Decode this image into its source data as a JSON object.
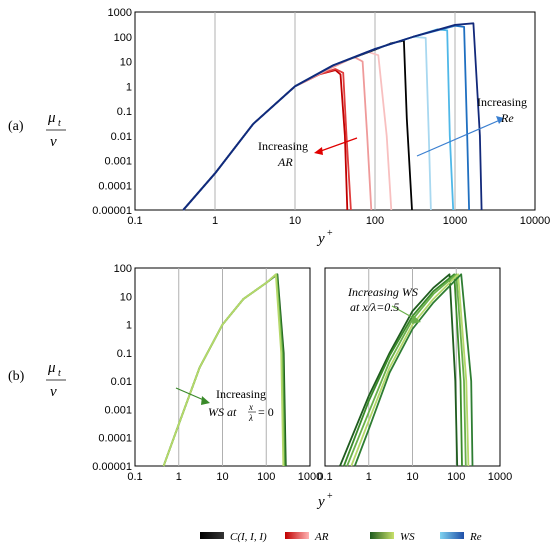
{
  "panel_labels": {
    "a": "(a)",
    "b": "(b)"
  },
  "ylabel": {
    "num": "μ",
    "num_sub": "t",
    "den": "ν"
  },
  "xlabel": {
    "main": "y",
    "sup": "+"
  },
  "annotations": {
    "a_ar": [
      "Increasing",
      "AR"
    ],
    "a_re": [
      "Increasing",
      "Re"
    ],
    "b_left": [
      "Increasing",
      "WS at ",
      "x",
      "λ",
      " = 0"
    ],
    "b_right": [
      "Increasing WS",
      "at x/λ=0.5"
    ]
  },
  "legend": [
    {
      "label": "C(I, I, I)",
      "colors": [
        "#000000",
        "#333333"
      ]
    },
    {
      "label": "AR",
      "colors": [
        "#c00000",
        "#ffb3b3"
      ]
    },
    {
      "label": "WS",
      "colors": [
        "#1f5c1f",
        "#c8e06a"
      ]
    },
    {
      "label": "Re",
      "colors": [
        "#7fd3f0",
        "#1f4fa8"
      ]
    }
  ],
  "chart_data": [
    {
      "type": "line",
      "panel": "(a)",
      "xscale": "log",
      "yscale": "log",
      "xlim": [
        0.1,
        10000
      ],
      "ylim": [
        1e-05,
        1000
      ],
      "xticks": [
        "0.1",
        "1",
        "10",
        "100",
        "1000",
        "10000"
      ],
      "yticks": [
        "0.00001",
        "0.0001",
        "0.001",
        "0.01",
        "0.1",
        "1",
        "10",
        "100",
        "1000"
      ],
      "grid": "vertical",
      "series": [
        {
          "color": "#c00000",
          "x": [
            0.4,
            1,
            3,
            10,
            20,
            32,
            37,
            42,
            45
          ],
          "y": [
            1e-05,
            0.0003,
            0.03,
            1,
            3,
            4.5,
            3.0,
            0.01,
            1e-05
          ]
        },
        {
          "color": "#e03c3c",
          "x": [
            0.4,
            1,
            3,
            10,
            20,
            32,
            40,
            44,
            50
          ],
          "y": [
            1e-05,
            0.0003,
            0.03,
            1,
            3,
            5,
            3.5,
            0.01,
            1e-05
          ]
        },
        {
          "color": "#ef9a9a",
          "x": [
            0.4,
            1,
            3,
            10,
            30,
            55,
            70,
            80,
            90
          ],
          "y": [
            1e-05,
            0.0003,
            0.03,
            1,
            6,
            15,
            10,
            0.01,
            1e-05
          ]
        },
        {
          "color": "#f8c0c0",
          "x": [
            0.4,
            1,
            3,
            10,
            30,
            80,
            110,
            140,
            160
          ],
          "y": [
            1e-05,
            0.0003,
            0.03,
            1,
            7,
            25,
            18,
            0.01,
            1e-05
          ]
        },
        {
          "color": "#000000",
          "x": [
            0.4,
            1,
            3,
            10,
            30,
            100,
            160,
            230,
            250,
            290
          ],
          "y": [
            1e-05,
            0.0003,
            0.03,
            1,
            7,
            30,
            55,
            70,
            0.05,
            1e-05
          ]
        },
        {
          "color": "#a8d8f0",
          "x": [
            0.4,
            1,
            3,
            10,
            30,
            100,
            300,
            430,
            470,
            500
          ],
          "y": [
            1e-05,
            0.0003,
            0.03,
            1,
            7,
            32,
            100,
            90,
            0.01,
            1e-05
          ]
        },
        {
          "color": "#4fb8e8",
          "x": [
            0.4,
            1,
            3,
            10,
            30,
            100,
            300,
            600,
            800,
            860,
            950
          ],
          "y": [
            1e-05,
            0.0003,
            0.03,
            1,
            7,
            32,
            100,
            200,
            180,
            0.01,
            1e-05
          ]
        },
        {
          "color": "#1f6fc0",
          "x": [
            0.4,
            1,
            3,
            10,
            30,
            100,
            300,
            1000,
            1300,
            1420,
            1500
          ],
          "y": [
            1e-05,
            0.0003,
            0.03,
            1,
            7,
            32,
            100,
            280,
            250,
            0.01,
            1e-05
          ]
        },
        {
          "color": "#12297a",
          "x": [
            0.4,
            1,
            3,
            10,
            30,
            100,
            300,
            1000,
            1700,
            2050,
            2150
          ],
          "y": [
            1e-05,
            0.0003,
            0.03,
            1,
            7,
            32,
            100,
            300,
            350,
            0.01,
            1e-05
          ]
        }
      ]
    },
    {
      "type": "line",
      "panel": "(b) left",
      "xscale": "log",
      "yscale": "log",
      "xlim": [
        0.1,
        1000
      ],
      "ylim": [
        1e-05,
        100
      ],
      "xticks": [
        "0.1",
        "1",
        "10",
        "100",
        "1000"
      ],
      "yticks": [
        "0.00001",
        "0.0001",
        "0.001",
        "0.01",
        "0.1",
        "1",
        "10",
        "100"
      ],
      "grid": "vertical",
      "series": [
        {
          "color": "#1f5c1f",
          "x": [
            0.45,
            1,
            3,
            10,
            30,
            100,
            180,
            250,
            280
          ],
          "y": [
            1e-05,
            0.0003,
            0.03,
            1,
            8,
            30,
            60,
            0.1,
            1e-05
          ]
        },
        {
          "color": "#3a8a2a",
          "x": [
            0.45,
            1,
            3,
            10,
            30,
            100,
            175,
            240,
            265
          ],
          "y": [
            1e-05,
            0.0003,
            0.03,
            1,
            8,
            30,
            60,
            0.1,
            1e-05
          ]
        },
        {
          "color": "#6ab04a",
          "x": [
            0.45,
            1,
            3,
            10,
            30,
            100,
            170,
            230,
            255
          ],
          "y": [
            1e-05,
            0.0003,
            0.03,
            1,
            8,
            30,
            60,
            0.1,
            1e-05
          ]
        },
        {
          "color": "#b5d86a",
          "x": [
            0.45,
            1,
            3,
            10,
            30,
            100,
            165,
            220,
            245
          ],
          "y": [
            1e-05,
            0.0003,
            0.03,
            1,
            8,
            30,
            60,
            0.1,
            1e-05
          ]
        }
      ]
    },
    {
      "type": "line",
      "panel": "(b) right",
      "xscale": "log",
      "yscale": "log",
      "xlim": [
        0.1,
        1000
      ],
      "ylim": [
        1e-05,
        100
      ],
      "xticks": [
        "0.1",
        "1",
        "10",
        "100",
        "1000"
      ],
      "grid": "vertical",
      "series": [
        {
          "color": "#1f5c1f",
          "x": [
            0.22,
            1,
            3,
            10,
            30,
            70,
            95,
            105
          ],
          "y": [
            1e-05,
            0.003,
            0.1,
            3,
            20,
            60,
            0.01,
            1e-05
          ]
        },
        {
          "color": "#3a8a2a",
          "x": [
            0.27,
            1,
            3,
            10,
            30,
            90,
            125,
            135
          ],
          "y": [
            1e-05,
            0.002,
            0.08,
            2,
            15,
            60,
            0.01,
            1e-05
          ]
        },
        {
          "color": "#6ab04a",
          "x": [
            0.32,
            1,
            3,
            10,
            30,
            100,
            150,
            165
          ],
          "y": [
            1e-05,
            0.0008,
            0.05,
            1.5,
            12,
            60,
            0.01,
            1e-05
          ]
        },
        {
          "color": "#b5d86a",
          "x": [
            0.4,
            1,
            3,
            10,
            30,
            110,
            170,
            190
          ],
          "y": [
            1e-05,
            0.0004,
            0.03,
            1,
            8,
            60,
            0.01,
            1e-05
          ]
        },
        {
          "color": "#2e7d32",
          "x": [
            0.48,
            1,
            3,
            10,
            30,
            130,
            220,
            235
          ],
          "y": [
            1e-05,
            0.0002,
            0.02,
            0.7,
            6,
            60,
            0.01,
            1e-05
          ]
        }
      ]
    }
  ]
}
